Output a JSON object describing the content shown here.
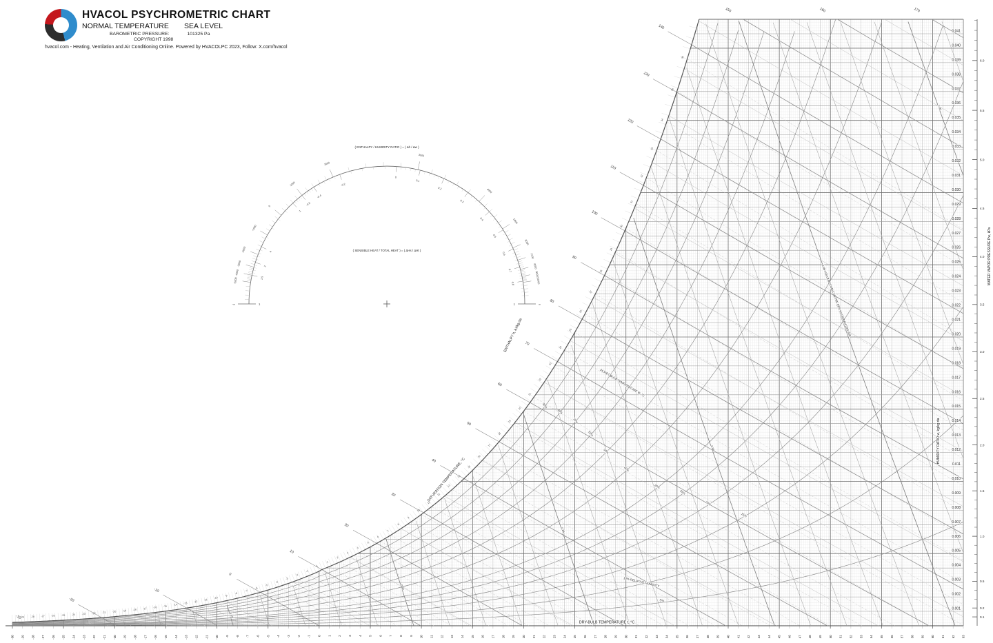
{
  "header": {
    "title": "HVACOL PSYCHROMETRIC CHART",
    "subtitle_left": "NORMAL TEMPERATURE",
    "subtitle_right": "SEA LEVEL",
    "pressure_label": "BAROMETRIC PRESSURE:",
    "pressure_value": "101325 Pa",
    "copyright": "COPYRIGHT 1998",
    "tagline": "hvacol.com - Heating, Ventilation and Air Conditioning Online. Powered by HVACOLPC 2023, Follow: X.com/hvacol",
    "logo_colors": {
      "blue": "#2f8ccc",
      "dark": "#2d2d2d",
      "red": "#c4171d"
    }
  },
  "protractor": {
    "title_outer": "( ENTHALPY / HUMIDITY RATIO ) = ( Δh / Δw )",
    "title_inner": "( SENSIBLE HEAT / TOTAL HEAT ) = ( ΔHs / ΔHt )",
    "left_end_outer": "-∞",
    "left_end_inner": "1",
    "right_end_inner": "1",
    "right_end_outer": "∞",
    "outer_scale": [
      {
        "label": "-5000",
        "angle": 171
      },
      {
        "label": "-4000",
        "angle": 168
      },
      {
        "label": "-3000",
        "angle": 164.5
      },
      {
        "label": "-2000",
        "angle": 159
      },
      {
        "label": "-1000",
        "angle": 150
      },
      {
        "label": "0",
        "angle": 140
      },
      {
        "label": "1000",
        "angle": 128
      },
      {
        "label": "2000",
        "angle": 113
      },
      {
        "label": "3000",
        "angle": 77
      },
      {
        "label": "4000",
        "angle": 48
      },
      {
        "label": "5000",
        "angle": 33
      },
      {
        "label": "6000",
        "angle": 24
      },
      {
        "label": "7000",
        "angle": 18.5
      },
      {
        "label": "8000",
        "angle": 14.5
      },
      {
        "label": "9000",
        "angle": 11.5
      },
      {
        "label": "10000",
        "angle": 9
      }
    ],
    "inner_scale": [
      {
        "label": "1.5",
        "angle": 168
      },
      {
        "label": "2",
        "angle": 162.5
      },
      {
        "label": "4",
        "angle": 155.5
      },
      {
        "label": "-1",
        "angle": 133
      },
      {
        "label": "-0.6",
        "angle": 128
      },
      {
        "label": "-0.4",
        "angle": 122
      },
      {
        "label": "-0.2",
        "angle": 110
      },
      {
        "label": "0",
        "angle": 86
      },
      {
        "label": "0.1",
        "angle": 76
      },
      {
        "label": "0.2",
        "angle": 65.5
      },
      {
        "label": "0.3",
        "angle": 54
      },
      {
        "label": "0.4",
        "angle": 42
      },
      {
        "label": "0.5",
        "angle": 32.5
      },
      {
        "label": "0.6",
        "angle": 23.5
      },
      {
        "label": "0.7",
        "angle": 15.5
      },
      {
        "label": "0.8",
        "angle": 9.5
      }
    ]
  },
  "chart_data": {
    "type": "psychrometric",
    "title": "HVACOL PSYCHROMETRIC CHART",
    "pressure_pa": 101325,
    "dry_bulb": {
      "label": "DRY-BULB TEMPERATURE  t, °C",
      "min": -30,
      "max": 63,
      "tick_step": 1,
      "fine_step": 0.2
    },
    "humidity_ratio": {
      "label": "HUMIDITY RATIO  w, kg/kg da",
      "min": 0,
      "max": 0.042,
      "tick_step": 0.001,
      "fine_step": 0.0002
    },
    "vapor_pressure": {
      "label": "WATER VAPOR PRESSURE  Pw, kPa",
      "labeled_ticks": [
        0.1,
        0.2,
        0.5,
        1.0,
        1.5,
        2.0,
        2.5,
        3.0,
        3.5,
        4.0,
        4.5,
        5.0,
        5.5,
        6.0
      ],
      "minor_step": 0.1
    },
    "enthalpy": {
      "label": "ENTHALPY  h, kJ/kg da",
      "min": -30,
      "max": 170,
      "line_step": 5,
      "label_step": 10
    },
    "wet_bulb": {
      "label": "WET BULB TEMPERATURE  W, °C",
      "label_line": 24,
      "min": -30,
      "max": 36,
      "step": 1
    },
    "saturation": {
      "label": "SATURATION TEMPERATURE, °C",
      "tick_label_min": -29,
      "tick_label_max": 36
    },
    "relative_humidity": {
      "label": "RELATIVE HUMIDITY",
      "label_line": 10,
      "extra_label": "5%",
      "curves": [
        5,
        10,
        15,
        20,
        25,
        30,
        40,
        50,
        60,
        70,
        80,
        90
      ]
    },
    "specific_volume": {
      "label": "VOLUME, CUBIC METRE PER KILOGRAM DRY AIR",
      "label_line": 0.95,
      "min": 0.7,
      "max": 1.01,
      "step": 0.01,
      "labeled_values": [
        0.75,
        0.8,
        0.85,
        0.9,
        1.0
      ]
    }
  }
}
